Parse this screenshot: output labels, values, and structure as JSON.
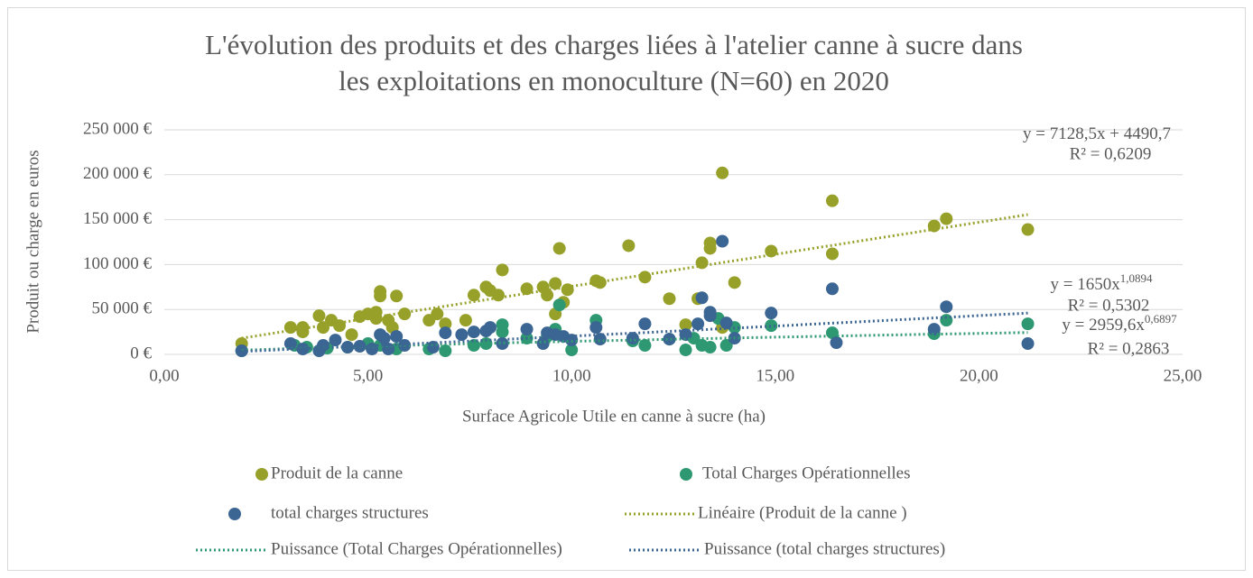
{
  "chart_data": {
    "type": "scatter",
    "title": [
      "L'évolution des produits et des charges liées à l'atelier canne à sucre dans",
      "les exploitations en monoculture (N=60) en 2020"
    ],
    "x_label": "Surface Agricole Utile en canne à sucre (ha)",
    "y_label": "Produit ou charge en euros",
    "xlim": [
      0,
      25
    ],
    "xticks": [
      {
        "value": 0,
        "label": "0,00"
      },
      {
        "value": 5,
        "label": "5,00"
      },
      {
        "value": 10,
        "label": "10,00"
      },
      {
        "value": 15,
        "label": "15,00"
      },
      {
        "value": 20,
        "label": "20,00"
      },
      {
        "value": 25,
        "label": "25,00"
      }
    ],
    "ylim": [
      0,
      250000
    ],
    "yticks": [
      {
        "value": 0,
        "label": "0 €"
      },
      {
        "value": 50000,
        "label": "50 000 €"
      },
      {
        "value": 100000,
        "label": "100 000 €"
      },
      {
        "value": 150000,
        "label": "150 000 €"
      },
      {
        "value": 200000,
        "label": "200 000 €"
      },
      {
        "value": 250000,
        "label": "250 000 €"
      }
    ],
    "grid": true,
    "legend": "bottom",
    "series": [
      {
        "name": "Produit de la canne",
        "color": "#97a12a",
        "x": [
          1.9,
          3.1,
          3.4,
          3.4,
          3.8,
          3.9,
          4.1,
          4.3,
          4.6,
          4.8,
          5.0,
          5.2,
          5.3,
          5.3,
          5.2,
          5.5,
          5.7,
          5.9,
          5.6,
          6.5,
          6.7,
          6.9,
          7.4,
          7.6,
          7.9,
          8.0,
          8.2,
          8.3,
          8.9,
          9.3,
          9.4,
          9.6,
          9.6,
          9.7,
          9.8,
          9.9,
          10.6,
          10.7,
          11.4,
          11.8,
          12.4,
          12.8,
          13.1,
          13.2,
          13.4,
          13.4,
          13.7,
          13.7,
          14.0,
          14.9,
          16.4,
          16.4,
          18.9,
          19.2,
          21.2
        ],
        "values": [
          12000,
          30000,
          30000,
          25000,
          43000,
          30000,
          38000,
          32000,
          22000,
          42000,
          45000,
          47000,
          70000,
          65000,
          40000,
          38000,
          65000,
          45000,
          30000,
          38000,
          45000,
          34000,
          38000,
          66000,
          75000,
          71000,
          66000,
          94000,
          73000,
          75000,
          66000,
          79000,
          45000,
          118000,
          58000,
          72000,
          82000,
          80000,
          121000,
          86000,
          62000,
          33000,
          62000,
          102000,
          118000,
          124000,
          202000,
          30000,
          80000,
          115000,
          112000,
          171000,
          143000,
          151000,
          139000
        ],
        "trendline": {
          "name": "Linéaire (Produit de la canne )",
          "kind": "linear",
          "slope": 7128.5,
          "intercept": 4490.7,
          "equation": "y = 7128,5x + 4490,7",
          "r2": "R² = 0,6209"
        }
      },
      {
        "name": "Total Charges Opérationnelles",
        "color": "#2e9872",
        "x": [
          1.9,
          3.2,
          3.5,
          4.0,
          4.5,
          5.0,
          5.3,
          5.7,
          6.5,
          6.9,
          7.6,
          7.9,
          8.3,
          8.3,
          8.9,
          9.4,
          9.6,
          9.7,
          10.0,
          10.6,
          11.5,
          11.8,
          12.4,
          12.8,
          13.0,
          13.2,
          13.4,
          13.6,
          13.8,
          14.0,
          14.9,
          16.4,
          18.9,
          19.2,
          21.2
        ],
        "values": [
          4000,
          10000,
          8000,
          7000,
          8000,
          12000,
          10000,
          6000,
          6000,
          4000,
          10000,
          12000,
          33000,
          25000,
          18000,
          20000,
          28000,
          55000,
          5000,
          38000,
          15000,
          10000,
          17000,
          5000,
          18000,
          10000,
          8000,
          40000,
          10000,
          30000,
          32000,
          24000,
          23000,
          38000,
          34000
        ],
        "trendline": {
          "name": "Puissance (Total Charges Opérationnelles)",
          "kind": "power",
          "coefficient": 2959.6,
          "exponent": {
            "value": 0.6897,
            "label": "0,6897"
          },
          "equation": "y = 2959,6x",
          "r2": "R² = 0,2863"
        }
      },
      {
        "name": "total charges structures",
        "color": "#3b6592",
        "x": [
          1.9,
          3.1,
          3.4,
          3.8,
          3.9,
          4.2,
          4.5,
          4.8,
          5.1,
          5.3,
          5.4,
          5.5,
          5.7,
          5.9,
          6.6,
          6.9,
          7.3,
          7.6,
          7.9,
          8.0,
          8.3,
          8.9,
          9.3,
          9.4,
          9.6,
          9.8,
          10.0,
          10.6,
          10.7,
          11.5,
          11.8,
          12.4,
          12.8,
          13.1,
          13.2,
          13.4,
          13.4,
          13.7,
          13.8,
          14.0,
          14.9,
          16.4,
          16.5,
          18.9,
          19.2,
          21.2
        ],
        "values": [
          4000,
          12000,
          6000,
          4000,
          10000,
          16000,
          8000,
          9000,
          6000,
          22000,
          18000,
          6000,
          20000,
          10000,
          8000,
          24000,
          22000,
          25000,
          26000,
          30000,
          12000,
          28000,
          12000,
          24000,
          22000,
          20000,
          16000,
          30000,
          17000,
          18000,
          34000,
          17000,
          22000,
          34000,
          63000,
          47000,
          43000,
          126000,
          35000,
          18000,
          46000,
          73000,
          13000,
          28000,
          53000,
          12000
        ],
        "trendline": {
          "name": "Puissance (total charges structures)",
          "kind": "power",
          "coefficient": 1650,
          "exponent": {
            "value": 1.0894,
            "label": "1,0894"
          },
          "equation": "y = 1650x",
          "r2": "R² = 0,5302"
        }
      }
    ]
  }
}
